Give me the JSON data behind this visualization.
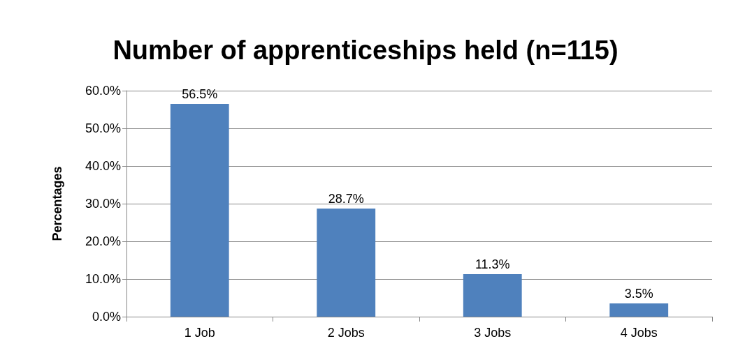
{
  "chart_data": {
    "type": "bar",
    "title": "Number of apprenticeships held (n=115)",
    "ylabel": "Percentages",
    "categories": [
      "1 Job",
      "2 Jobs",
      "3 Jobs",
      "4 Jobs"
    ],
    "values": [
      56.5,
      28.7,
      11.3,
      3.5
    ],
    "value_labels": [
      "56.5%",
      "28.7%",
      "11.3%",
      "3.5%"
    ],
    "color": "#4f81bd",
    "ylim": [
      0,
      60
    ],
    "yticks": [
      {
        "value": 0,
        "label": "0.0%"
      },
      {
        "value": 10,
        "label": "10.0%"
      },
      {
        "value": 20,
        "label": "20.0%"
      },
      {
        "value": 30,
        "label": "30.0%"
      },
      {
        "value": 40,
        "label": "40.0%"
      },
      {
        "value": 50,
        "label": "50.0%"
      },
      {
        "value": 60,
        "label": "60.0%"
      }
    ],
    "grid": "y"
  }
}
